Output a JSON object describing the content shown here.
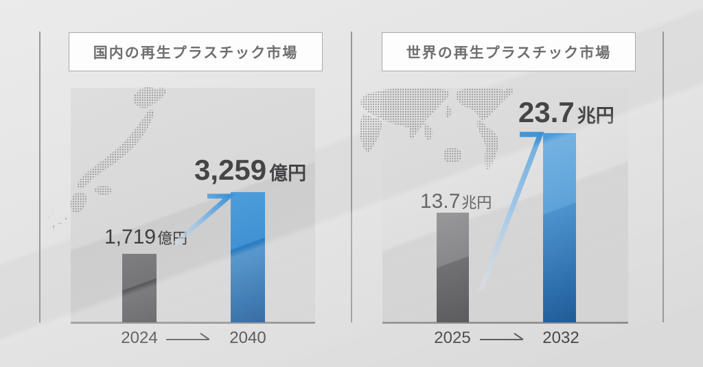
{
  "colors": {
    "accent_blue": "#2e80c4",
    "bar_gray": "#5a5a5d",
    "background_gray": "#e0e0e0",
    "baseline_gray": "#8d8d8d",
    "text_dark": "#434345",
    "title_text_gray": "#6e6e6e",
    "arrow_blue": "#3e92d5",
    "map_dot_gray": "#98989a"
  },
  "panels": [
    {
      "title": "国内の再生プラスチック市場",
      "map": "japan-dot-map",
      "from": {
        "year": "2024",
        "value": "1,719",
        "unit": "億円"
      },
      "to": {
        "year": "2040",
        "value": "3,259",
        "unit": "億円"
      }
    },
    {
      "title": "世界の再生プラスチック市場",
      "map": "world-dot-map",
      "from": {
        "year": "2025",
        "value": "13.7",
        "unit": "兆円"
      },
      "to": {
        "year": "2032",
        "value": "23.7",
        "unit": "兆円"
      }
    }
  ],
  "chart_data": [
    {
      "type": "bar",
      "title": "国内の再生プラスチック市場",
      "categories": [
        "2024",
        "2040"
      ],
      "values": [
        1719,
        3259
      ],
      "unit": "億円",
      "value_labels": [
        "1,719億円",
        "3,259億円"
      ],
      "bar_colors": [
        "#5a5a5d",
        "#2e80c4"
      ],
      "ylim": [
        0,
        3259
      ],
      "grid": false,
      "legend": "none",
      "annotations": [
        "growth-arrow from 2024 bar to 2040 bar",
        "dotted Japan map background"
      ]
    },
    {
      "type": "bar",
      "title": "世界の再生プラスチック市場",
      "categories": [
        "2025",
        "2032"
      ],
      "values": [
        13.7,
        23.7
      ],
      "unit": "兆円",
      "value_labels": [
        "13.7兆円",
        "23.7兆円"
      ],
      "bar_colors": [
        "#5a5a5d",
        "#2e80c4"
      ],
      "ylim": [
        0,
        23.7
      ],
      "grid": false,
      "legend": "none",
      "annotations": [
        "growth-arrow from 2025 bar to 2032 bar",
        "dotted world map background"
      ]
    }
  ]
}
